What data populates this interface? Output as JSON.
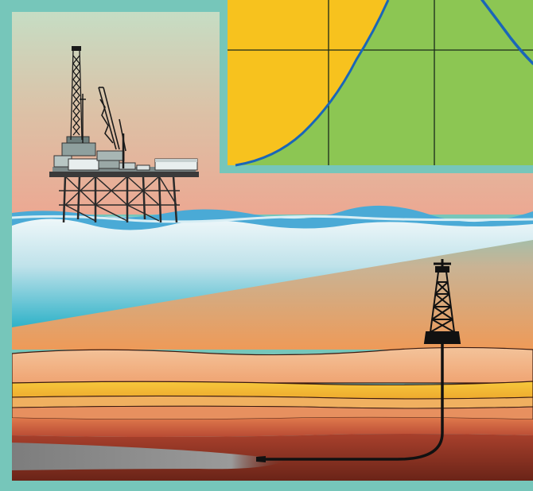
{
  "diagram": {
    "colors": {
      "frame": "#76c6ba",
      "sky_top": "#c6ddc4",
      "sky_mid": "#dcc1a6",
      "sky_low": "#eca892",
      "sea_surface": "#4aaad6",
      "sea_light": "#d8eef4",
      "sea_deep": "#2fb2c8",
      "ground_top": "#8fc4b4",
      "ground_orange": "#ee9a58",
      "layer_peach": "#f5b887",
      "layer_yellow": "#f6c63a",
      "layer_red": "#c85a3a",
      "layer_brown": "#7a2e20",
      "reservoir_gray": "#8a8a8a",
      "inset_yellow": "#f7c21e",
      "inset_green": "#8cc653",
      "inset_curve": "#1a66b8",
      "well": "#111111"
    },
    "icons": [
      "offshore-platform-icon",
      "onshore-derrick-icon",
      "horizontal-well-icon"
    ]
  }
}
